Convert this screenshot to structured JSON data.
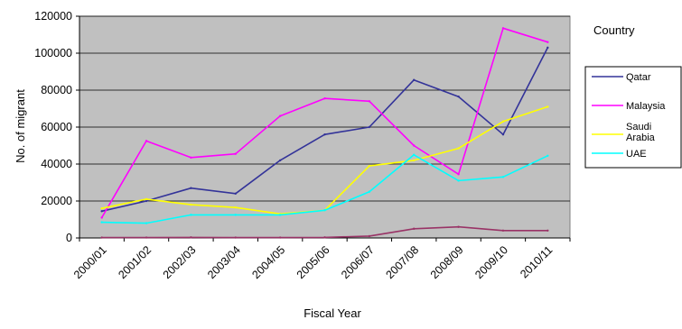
{
  "chart_data": {
    "type": "line",
    "title": "",
    "xlabel": "Fiscal Year",
    "ylabel": "No. of migrant",
    "ylim": [
      0,
      120000
    ],
    "yticks": [
      0,
      20000,
      40000,
      60000,
      80000,
      100000,
      120000
    ],
    "grid": true,
    "plot_background": "#c0c0c0",
    "legend_title": "Country",
    "legend_position": "right",
    "categories": [
      "2000/01",
      "2001/02",
      "2002/03",
      "2003/04",
      "2004/05",
      "2005/06",
      "2006/07",
      "2007/08",
      "2008/09",
      "2009/10",
      "2010/11"
    ],
    "series": [
      {
        "name": "Qatar",
        "color": "#333399",
        "in_legend": true,
        "values": [
          14500,
          20000,
          27000,
          24000,
          42000,
          56000,
          60000,
          85500,
          76500,
          56000,
          103000
        ]
      },
      {
        "name": "Malaysia",
        "color": "#ff00ff",
        "in_legend": true,
        "values": [
          11000,
          52500,
          43500,
          45500,
          66000,
          75500,
          74000,
          50000,
          34500,
          113500,
          106000
        ]
      },
      {
        "name": "Saudi Arabia",
        "color": "#ffff00",
        "in_legend": true,
        "values": [
          16000,
          21000,
          18000,
          16500,
          13000,
          15000,
          39000,
          42000,
          48500,
          63000,
          71000
        ]
      },
      {
        "name": "UAE",
        "color": "#00ffff",
        "in_legend": true,
        "values": [
          8500,
          8000,
          12500,
          12500,
          12500,
          15000,
          25000,
          45000,
          31000,
          33000,
          44500
        ]
      },
      {
        "name": "",
        "color": "#993366",
        "in_legend": false,
        "values": [
          200,
          200,
          300,
          200,
          200,
          300,
          1000,
          5000,
          6000,
          4000,
          4000
        ]
      }
    ]
  }
}
